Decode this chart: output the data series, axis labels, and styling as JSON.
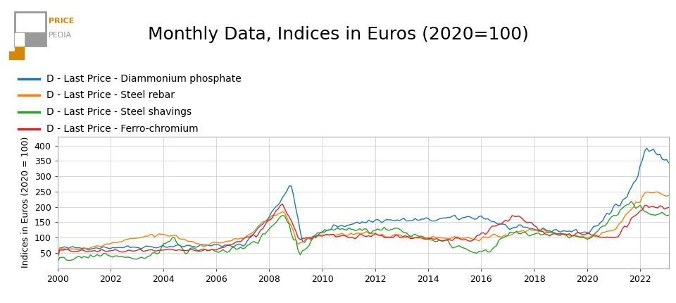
{
  "title": "Monthly Data, Indices in Euros (2020=100)",
  "ylabel": "Indices in Euros (2020 = 100)",
  "series": [
    {
      "label": "D - Last Price - Diammonium phosphate",
      "color": "#1f77b4"
    },
    {
      "label": "D - Last Price - Steel rebar",
      "color": "#ff7f0e"
    },
    {
      "label": "D - Last Price - Steel shavings",
      "color": "#2ca02c"
    },
    {
      "label": "D - Last Price - Ferro-chromium",
      "color": "#d62728"
    }
  ],
  "xlim": [
    2000.0,
    2023.1
  ],
  "ylim": [
    0,
    430
  ],
  "yticks": [
    50,
    100,
    150,
    200,
    250,
    300,
    350,
    400
  ],
  "xticks": [
    2000,
    2002,
    2004,
    2006,
    2008,
    2010,
    2012,
    2014,
    2016,
    2018,
    2020,
    2022
  ],
  "background_color": "#ffffff",
  "title_fontsize": 18,
  "legend_fontsize": 10,
  "logo_gray": "#999999",
  "logo_orange": "#d4870a"
}
